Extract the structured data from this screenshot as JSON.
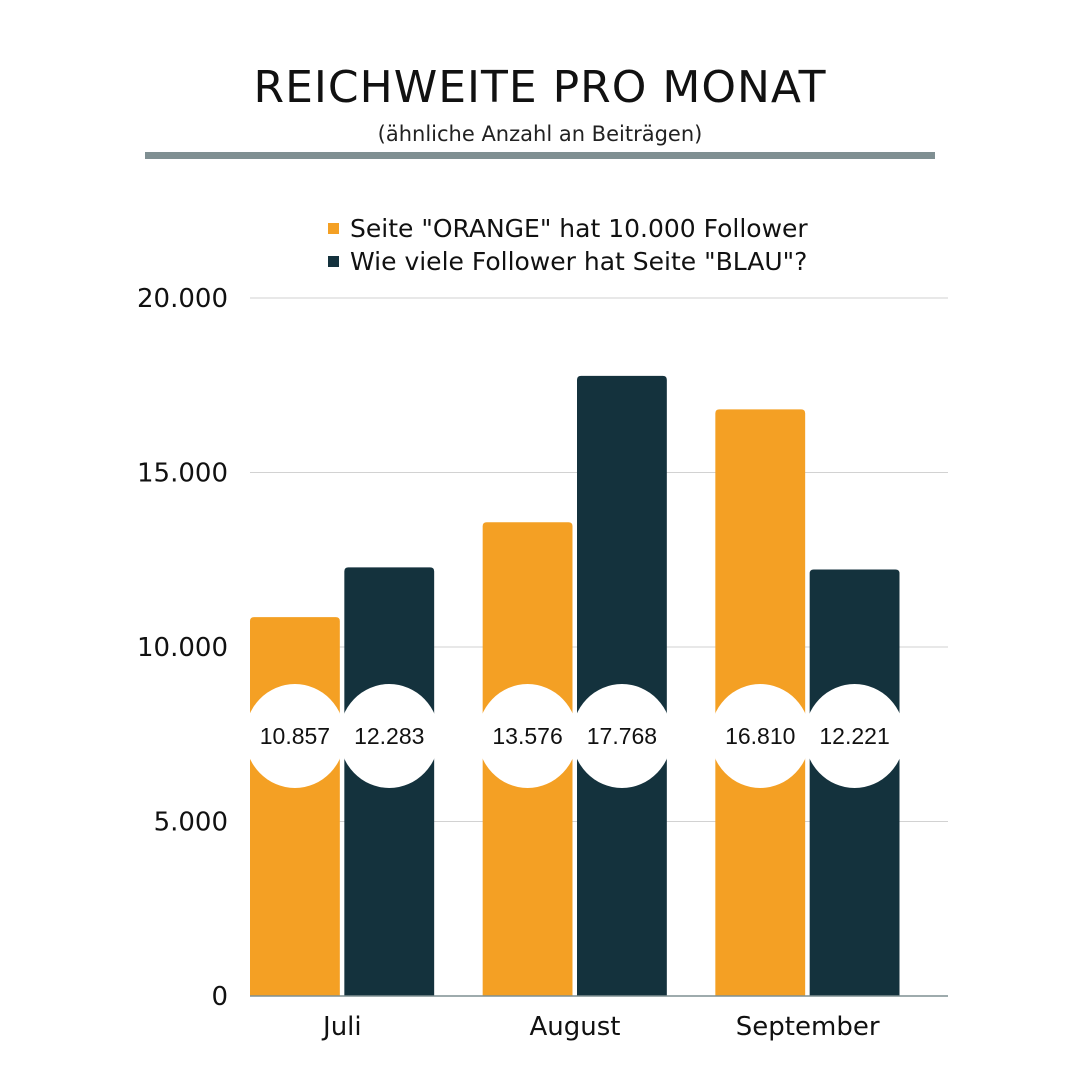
{
  "colors": {
    "orange": "#f4a024",
    "blue": "#14323d",
    "grid": "#d2d2d2",
    "axis_line": "#7f8f92",
    "bubble": "#ffffff"
  },
  "chart_data": {
    "type": "bar",
    "title": "REICHWEITE PRO MONAT",
    "subtitle": "(ähnliche Anzahl an Beiträgen)",
    "categories": [
      "Juli",
      "August",
      "September"
    ],
    "series": [
      {
        "name": "Seite \"ORANGE\" hat 10.000 Follower",
        "color": "#f4a024",
        "values": [
          10857,
          13576,
          16810
        ],
        "labels": [
          "10.857",
          "13.576",
          "16.810"
        ]
      },
      {
        "name": "Wie viele Follower hat Seite \"BLAU\"?",
        "color": "#14323d",
        "values": [
          12283,
          17768,
          12221
        ],
        "labels": [
          "12.283",
          "17.768",
          "12.221"
        ]
      }
    ],
    "ylim": [
      0,
      20000
    ],
    "yticks": [
      0,
      5000,
      10000,
      15000,
      20000
    ],
    "ytick_labels": [
      "0",
      "5.000",
      "10.000",
      "15.000",
      "20.000"
    ],
    "grid": true,
    "legend_position": "top-center"
  }
}
